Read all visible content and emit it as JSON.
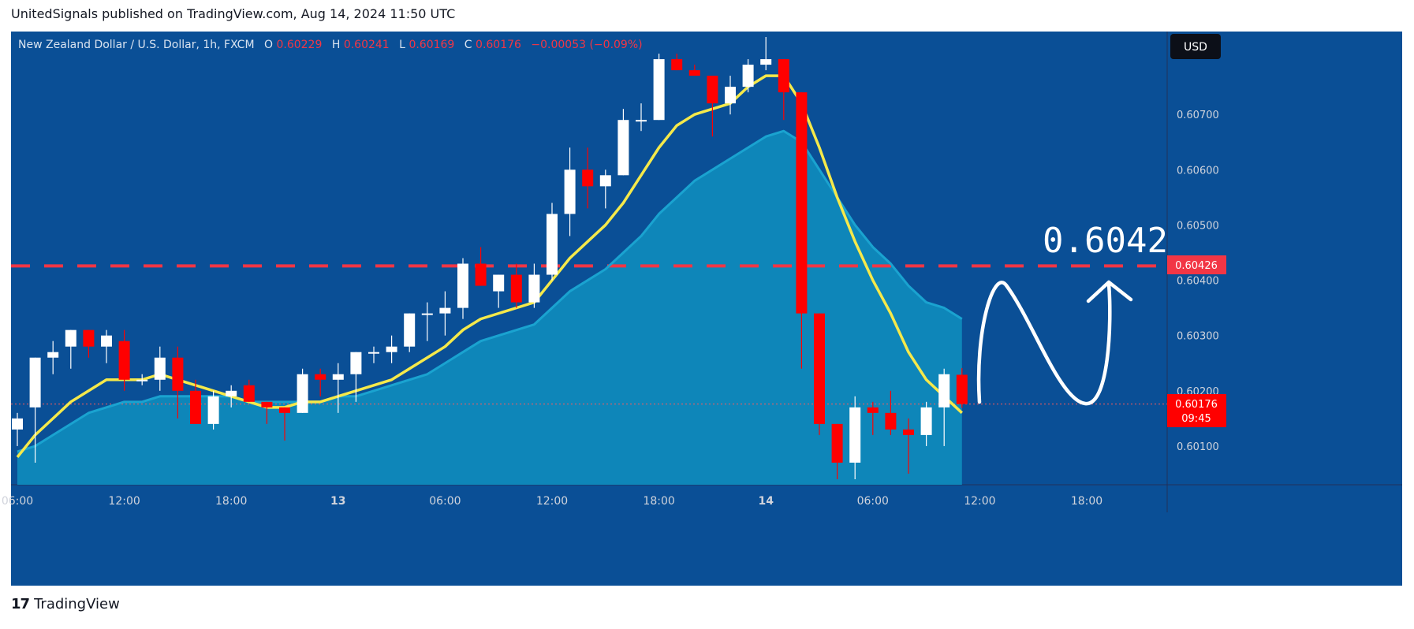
{
  "header": {
    "attribution": "UnitedSignals published on TradingView.com, Aug 14, 2024 11:50 UTC"
  },
  "footer": {
    "brand": "TradingView",
    "logo_glyph": "17"
  },
  "legend": {
    "symbol": "New Zealand Dollar / U.S. Dollar, 1h, FXCM",
    "o_label": "O",
    "o_value": "0.60229",
    "h_label": "H",
    "h_value": "0.60241",
    "l_label": "L",
    "l_value": "0.60169",
    "c_label": "C",
    "c_value": "0.60176",
    "change": "−0.00053 (−0.09%)"
  },
  "currency_button": "USD",
  "annotation": {
    "target_text": "0.6042"
  },
  "price_tags": {
    "target": "0.60426",
    "last": "0.60176",
    "countdown": "09:45"
  },
  "colors": {
    "background": "#0a4f96",
    "up": "#ffffff",
    "down": "#ff0000",
    "ema_fast": "#f5e94a",
    "ema_slow": "#1aa3d0",
    "area_fill": "#0e8cbc",
    "dashed_level": "#f23645",
    "legend_values": "#f23645"
  },
  "chart_data": {
    "type": "candlestick",
    "y_ticks": [
      "0.60100",
      "0.60200",
      "0.60300",
      "0.60400",
      "0.60500",
      "0.60600",
      "0.60700"
    ],
    "ylim": [
      0.6003,
      0.6085
    ],
    "x_ticks": [
      "06:00",
      "12:00",
      "18:00",
      "13",
      "06:00",
      "12:00",
      "18:00",
      "14",
      "06:00",
      "12:00",
      "18:00"
    ],
    "x_tick_index": [
      0,
      6,
      12,
      18,
      24,
      30,
      36,
      42,
      48,
      54,
      60
    ],
    "x_index_range": [
      0,
      64
    ],
    "horizontal_level": 0.60426,
    "last_price": 0.60176,
    "candles": [
      {
        "o": 0.6013,
        "h": 0.6016,
        "l": 0.601,
        "c": 0.6015
      },
      {
        "o": 0.6017,
        "h": 0.6026,
        "l": 0.6007,
        "c": 0.6026
      },
      {
        "o": 0.6026,
        "h": 0.6029,
        "l": 0.6023,
        "c": 0.6027
      },
      {
        "o": 0.6028,
        "h": 0.6031,
        "l": 0.6024,
        "c": 0.6031
      },
      {
        "o": 0.6031,
        "h": 0.6031,
        "l": 0.6026,
        "c": 0.6028
      },
      {
        "o": 0.6028,
        "h": 0.6031,
        "l": 0.6025,
        "c": 0.603
      },
      {
        "o": 0.6029,
        "h": 0.6031,
        "l": 0.602,
        "c": 0.6022
      },
      {
        "o": 0.6022,
        "h": 0.6023,
        "l": 0.6021,
        "c": 0.6022
      },
      {
        "o": 0.6022,
        "h": 0.6028,
        "l": 0.602,
        "c": 0.6026
      },
      {
        "o": 0.6026,
        "h": 0.6028,
        "l": 0.6015,
        "c": 0.602
      },
      {
        "o": 0.602,
        "h": 0.6022,
        "l": 0.6014,
        "c": 0.6014
      },
      {
        "o": 0.6014,
        "h": 0.602,
        "l": 0.6013,
        "c": 0.6019
      },
      {
        "o": 0.6019,
        "h": 0.6021,
        "l": 0.6017,
        "c": 0.602
      },
      {
        "o": 0.6021,
        "h": 0.6022,
        "l": 0.6018,
        "c": 0.6018
      },
      {
        "o": 0.6018,
        "h": 0.6018,
        "l": 0.6014,
        "c": 0.6017
      },
      {
        "o": 0.6017,
        "h": 0.6017,
        "l": 0.6011,
        "c": 0.6016
      },
      {
        "o": 0.6016,
        "h": 0.6024,
        "l": 0.6016,
        "c": 0.6023
      },
      {
        "o": 0.6023,
        "h": 0.6024,
        "l": 0.6019,
        "c": 0.6022
      },
      {
        "o": 0.6022,
        "h": 0.6025,
        "l": 0.6016,
        "c": 0.6023
      },
      {
        "o": 0.6023,
        "h": 0.6027,
        "l": 0.6018,
        "c": 0.6027
      },
      {
        "o": 0.6027,
        "h": 0.6028,
        "l": 0.6025,
        "c": 0.6027
      },
      {
        "o": 0.6027,
        "h": 0.603,
        "l": 0.6025,
        "c": 0.6028
      },
      {
        "o": 0.6028,
        "h": 0.6034,
        "l": 0.6027,
        "c": 0.6034
      },
      {
        "o": 0.6034,
        "h": 0.6036,
        "l": 0.6029,
        "c": 0.6034
      },
      {
        "o": 0.6034,
        "h": 0.6038,
        "l": 0.603,
        "c": 0.6035
      },
      {
        "o": 0.6035,
        "h": 0.6044,
        "l": 0.6033,
        "c": 0.6043
      },
      {
        "o": 0.6043,
        "h": 0.6046,
        "l": 0.6039,
        "c": 0.6039
      },
      {
        "o": 0.6038,
        "h": 0.6041,
        "l": 0.6035,
        "c": 0.6041
      },
      {
        "o": 0.6041,
        "h": 0.6043,
        "l": 0.6035,
        "c": 0.6036
      },
      {
        "o": 0.6036,
        "h": 0.6043,
        "l": 0.6035,
        "c": 0.6041
      },
      {
        "o": 0.6041,
        "h": 0.6054,
        "l": 0.604,
        "c": 0.6052
      },
      {
        "o": 0.6052,
        "h": 0.6064,
        "l": 0.6048,
        "c": 0.606
      },
      {
        "o": 0.606,
        "h": 0.6064,
        "l": 0.6053,
        "c": 0.6057
      },
      {
        "o": 0.6057,
        "h": 0.606,
        "l": 0.6053,
        "c": 0.6059
      },
      {
        "o": 0.6059,
        "h": 0.6071,
        "l": 0.6059,
        "c": 0.6069
      },
      {
        "o": 0.6069,
        "h": 0.6072,
        "l": 0.6067,
        "c": 0.6069
      },
      {
        "o": 0.6069,
        "h": 0.6081,
        "l": 0.6069,
        "c": 0.608
      },
      {
        "o": 0.608,
        "h": 0.6081,
        "l": 0.6078,
        "c": 0.6078
      },
      {
        "o": 0.6078,
        "h": 0.6079,
        "l": 0.6077,
        "c": 0.6077
      },
      {
        "o": 0.6077,
        "h": 0.6077,
        "l": 0.6066,
        "c": 0.6072
      },
      {
        "o": 0.6072,
        "h": 0.6077,
        "l": 0.607,
        "c": 0.6075
      },
      {
        "o": 0.6075,
        "h": 0.608,
        "l": 0.6074,
        "c": 0.6079
      },
      {
        "o": 0.6079,
        "h": 0.6084,
        "l": 0.6078,
        "c": 0.608
      },
      {
        "o": 0.608,
        "h": 0.608,
        "l": 0.6069,
        "c": 0.6074
      },
      {
        "o": 0.6074,
        "h": 0.6074,
        "l": 0.6024,
        "c": 0.6034
      },
      {
        "o": 0.6034,
        "h": 0.6034,
        "l": 0.6012,
        "c": 0.6014
      },
      {
        "o": 0.6014,
        "h": 0.6014,
        "l": 0.6004,
        "c": 0.6007
      },
      {
        "o": 0.6007,
        "h": 0.6019,
        "l": 0.6004,
        "c": 0.6017
      },
      {
        "o": 0.6017,
        "h": 0.6018,
        "l": 0.6012,
        "c": 0.6016
      },
      {
        "o": 0.6016,
        "h": 0.602,
        "l": 0.6012,
        "c": 0.6013
      },
      {
        "o": 0.6013,
        "h": 0.6015,
        "l": 0.6005,
        "c": 0.6012
      },
      {
        "o": 0.6012,
        "h": 0.6018,
        "l": 0.601,
        "c": 0.6017
      },
      {
        "o": 0.6017,
        "h": 0.6024,
        "l": 0.601,
        "c": 0.6023
      },
      {
        "o": 0.60229,
        "h": 0.60241,
        "l": 0.60169,
        "c": 0.60176
      }
    ],
    "ema_fast": [
      0.6008,
      0.6012,
      0.6015,
      0.6018,
      0.602,
      0.6022,
      0.6022,
      0.6022,
      0.6023,
      0.6022,
      0.6021,
      0.602,
      0.6019,
      0.6018,
      0.6017,
      0.6017,
      0.6018,
      0.6018,
      0.6019,
      0.602,
      0.6021,
      0.6022,
      0.6024,
      0.6026,
      0.6028,
      0.6031,
      0.6033,
      0.6034,
      0.6035,
      0.6036,
      0.604,
      0.6044,
      0.6047,
      0.605,
      0.6054,
      0.6059,
      0.6064,
      0.6068,
      0.607,
      0.6071,
      0.6072,
      0.6075,
      0.6077,
      0.6077,
      0.6072,
      0.6064,
      0.6055,
      0.6047,
      0.604,
      0.6034,
      0.6027,
      0.6022,
      0.6019,
      0.6016
    ],
    "ema_slow": [
      0.6009,
      0.601,
      0.6012,
      0.6014,
      0.6016,
      0.6017,
      0.6018,
      0.6018,
      0.6019,
      0.6019,
      0.6019,
      0.6019,
      0.6019,
      0.6018,
      0.6018,
      0.6018,
      0.6018,
      0.6018,
      0.6019,
      0.6019,
      0.602,
      0.6021,
      0.6022,
      0.6023,
      0.6025,
      0.6027,
      0.6029,
      0.603,
      0.6031,
      0.6032,
      0.6035,
      0.6038,
      0.604,
      0.6042,
      0.6045,
      0.6048,
      0.6052,
      0.6055,
      0.6058,
      0.606,
      0.6062,
      0.6064,
      0.6066,
      0.6067,
      0.6065,
      0.606,
      0.6055,
      0.605,
      0.6046,
      0.6043,
      0.6039,
      0.6036,
      0.6035,
      0.6033
    ]
  }
}
